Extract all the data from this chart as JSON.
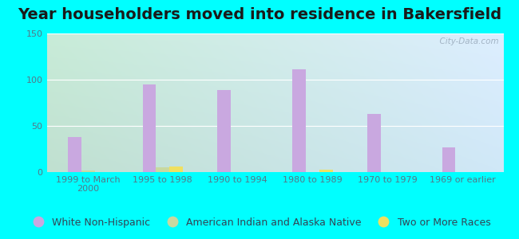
{
  "title": "Year householders moved into residence in Bakersfield",
  "background_color": "#00FFFF",
  "categories": [
    "1999 to March\n2000",
    "1995 to 1998",
    "1990 to 1994",
    "1980 to 1989",
    "1970 to 1979",
    "1969 or earlier"
  ],
  "series": [
    {
      "name": "White Non-Hispanic",
      "color": "#c9a8e0",
      "values": [
        38,
        95,
        89,
        111,
        63,
        27
      ]
    },
    {
      "name": "American Indian and Alaska Native",
      "color": "#c8d8a0",
      "values": [
        2,
        5,
        0,
        0,
        0,
        0
      ]
    },
    {
      "name": "Two or More Races",
      "color": "#f0e060",
      "values": [
        0,
        6,
        0,
        3,
        0,
        0
      ]
    }
  ],
  "ylim": [
    0,
    150
  ],
  "yticks": [
    0,
    50,
    100,
    150
  ],
  "bar_width": 0.18,
  "watermark": "  City-Data.com",
  "title_fontsize": 14,
  "tick_fontsize": 8,
  "legend_fontsize": 9,
  "grad_colors_lr": [
    "#d0ecd8",
    "#ddeeff"
  ],
  "grad_colors_tb": [
    "#e8f8f0",
    "#c8e8d8"
  ]
}
